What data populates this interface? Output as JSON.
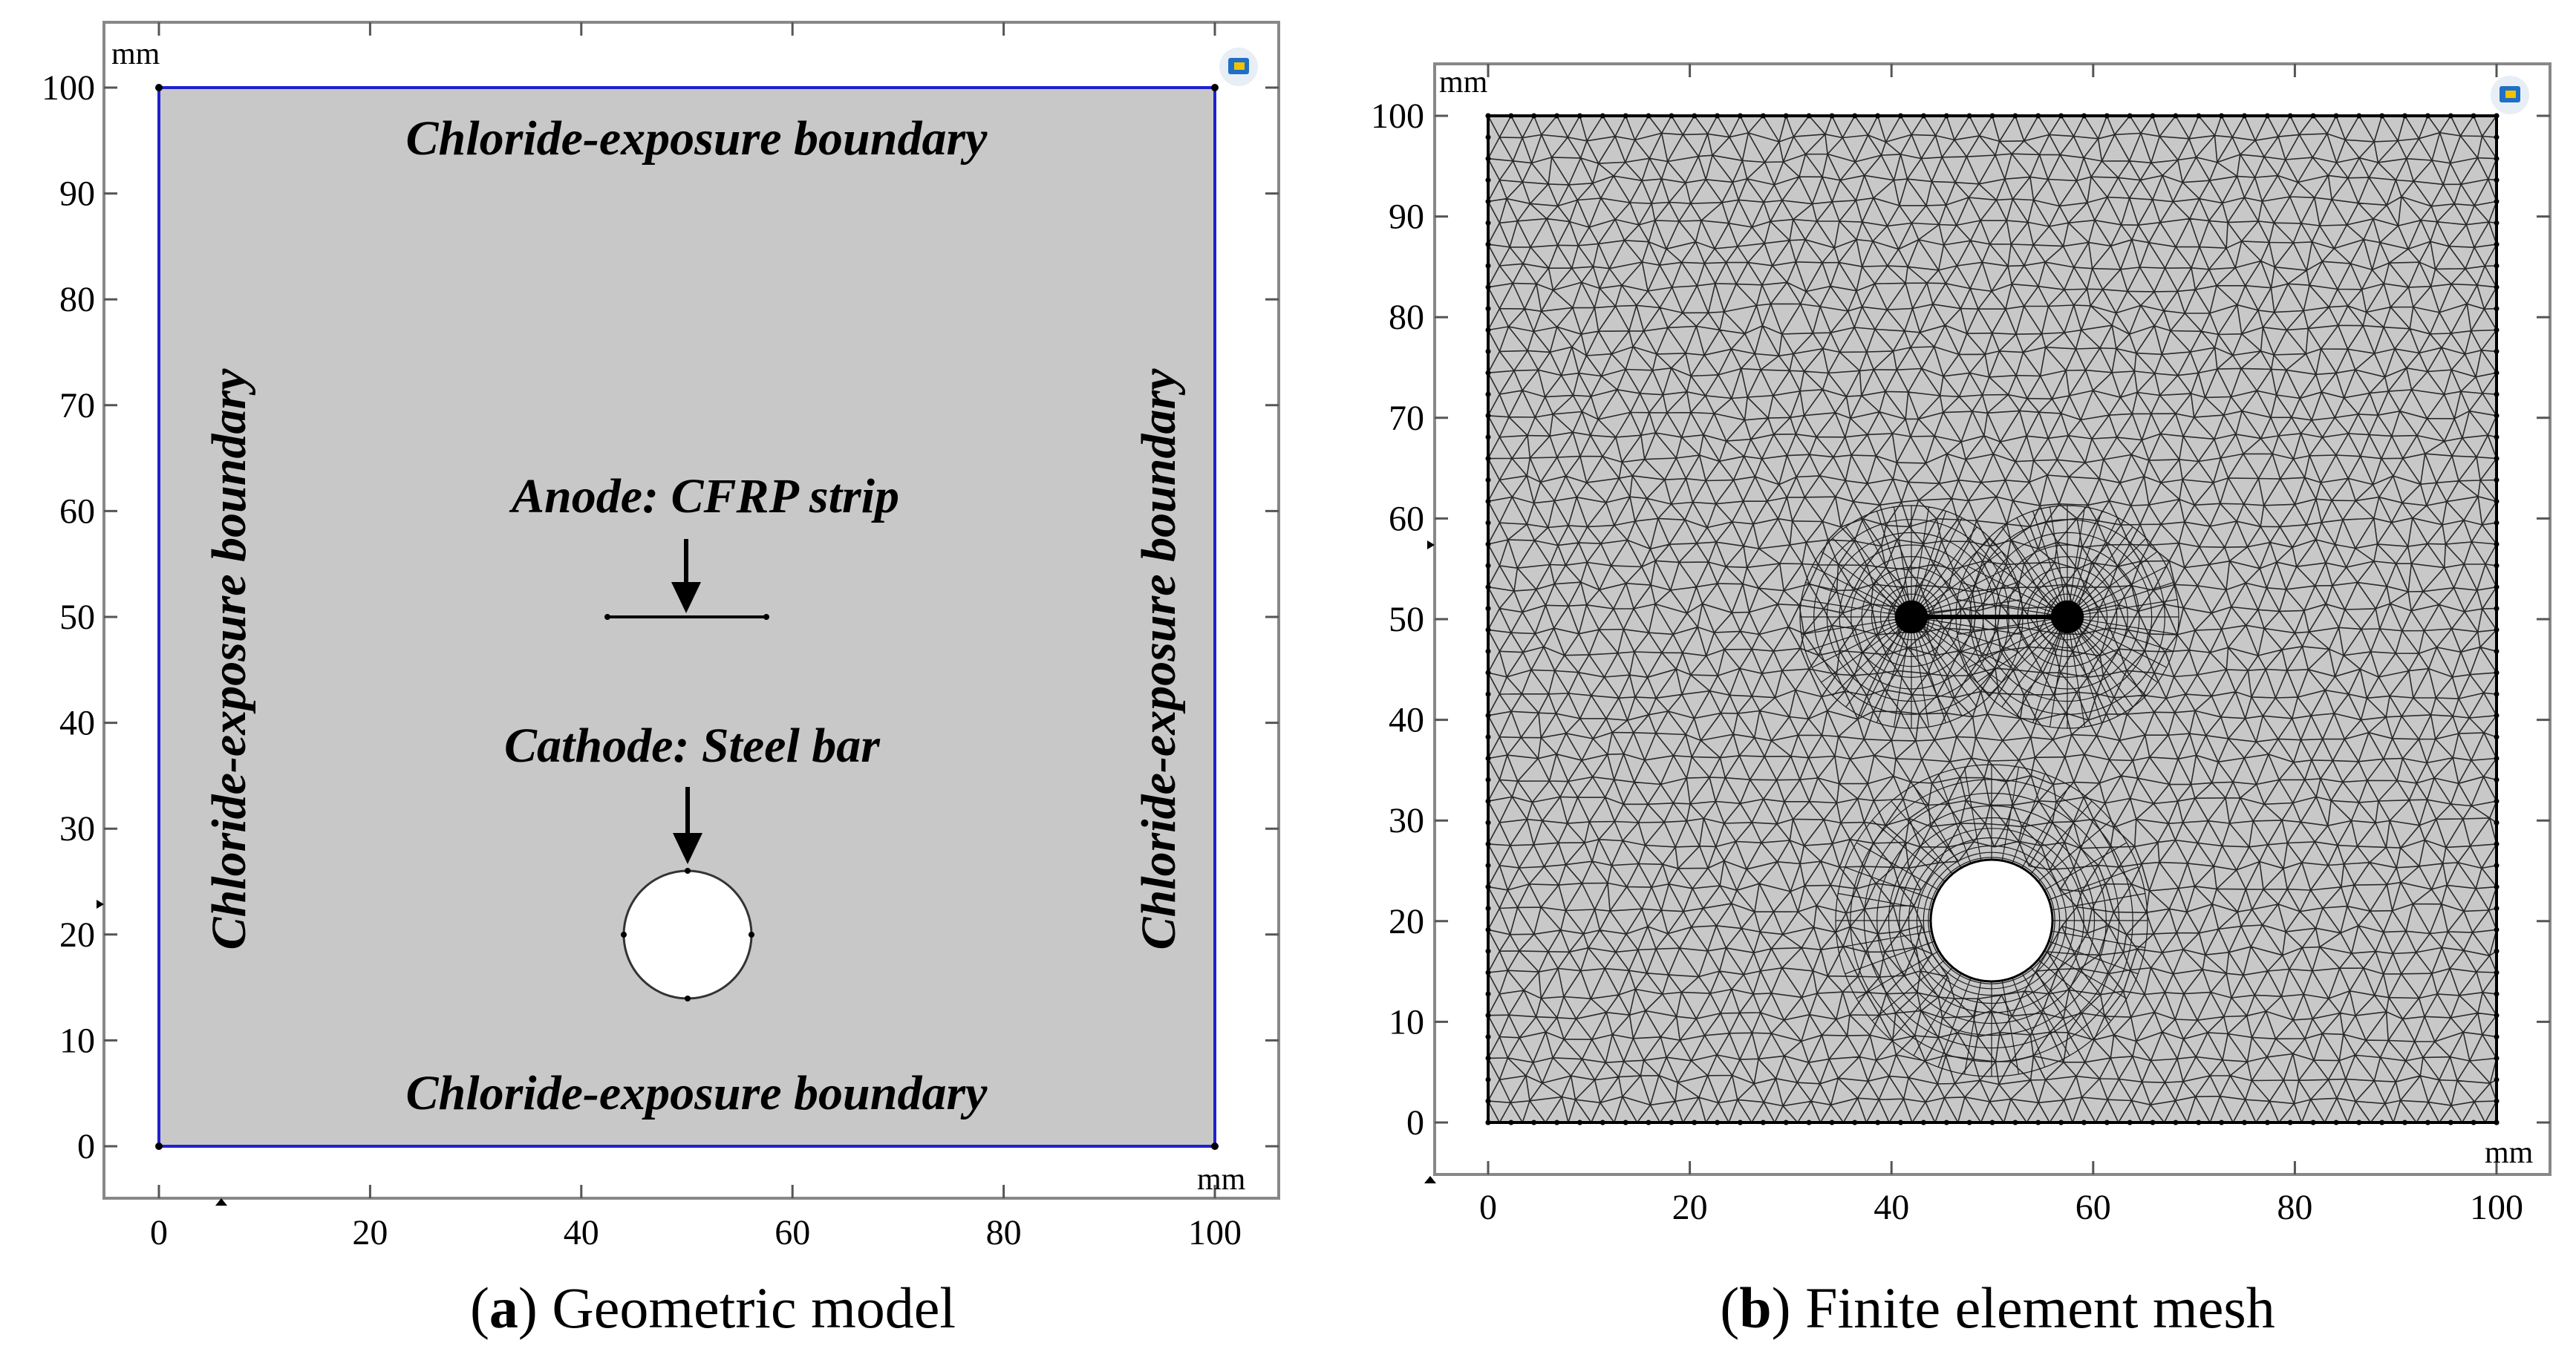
{
  "panel_a": {
    "x_unit": "mm",
    "y_unit": "mm",
    "x_ticks": [
      "0",
      "20",
      "40",
      "60",
      "80",
      "100"
    ],
    "y_ticks": [
      "0",
      "10",
      "20",
      "30",
      "40",
      "50",
      "60",
      "70",
      "80",
      "90",
      "100"
    ],
    "boundary_top": "Chloride-exposure boundary",
    "boundary_bottom": "Chloride-exposure boundary",
    "boundary_left": "Chloride-exposure boundary",
    "boundary_right": "Chloride-exposure boundary",
    "anode_label": "Anode: CFRP strip",
    "cathode_label": "Cathode: Steel bar",
    "caption_letter": "a",
    "caption_text": "Geometric model"
  },
  "panel_b": {
    "x_unit": "mm",
    "y_unit": "mm",
    "x_ticks": [
      "0",
      "20",
      "40",
      "60",
      "80",
      "100"
    ],
    "y_ticks": [
      "0",
      "10",
      "20",
      "30",
      "40",
      "50",
      "60",
      "70",
      "80",
      "90",
      "100"
    ],
    "caption_letter": "b",
    "caption_text": "Finite element mesh"
  },
  "geometry": {
    "domain_mm": [
      0,
      100,
      0,
      100
    ],
    "strip_x_mm": [
      42,
      57.5
    ],
    "strip_y_mm": 50,
    "bar_center_mm": [
      50,
      20
    ],
    "bar_radius_mm": 6
  },
  "colors": {
    "domain_fill": "#c8c8c8",
    "boundary": "#2020d0",
    "mesh_line": "#2a2a2a",
    "axis_frame": "#888888",
    "logo_blue": "#1f6fc4",
    "logo_yellow": "#f2c200"
  }
}
